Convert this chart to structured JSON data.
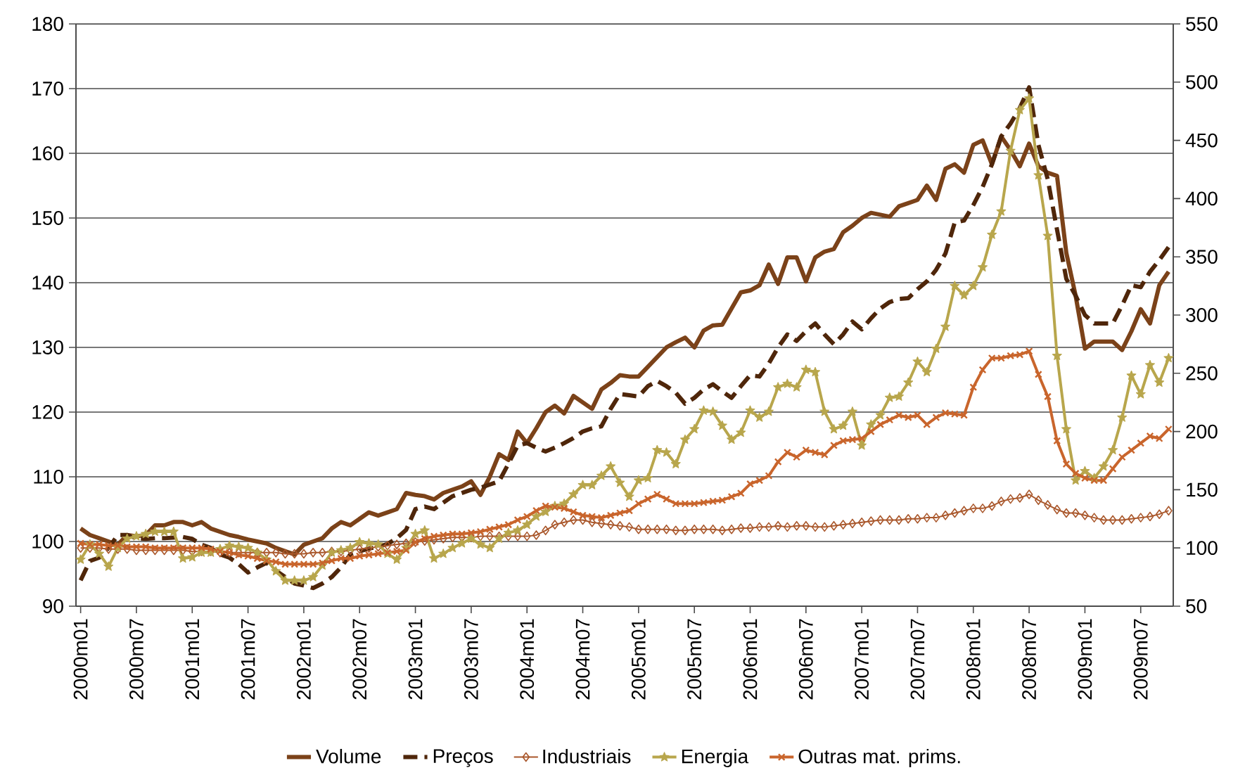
{
  "chart_data": {
    "type": "line",
    "categories": [
      "2000m01",
      null,
      null,
      null,
      null,
      null,
      "2000m07",
      null,
      null,
      null,
      null,
      null,
      "2001m01",
      null,
      null,
      null,
      null,
      null,
      "2001m07",
      null,
      null,
      null,
      null,
      null,
      "2002m01",
      null,
      null,
      null,
      null,
      null,
      "2002m07",
      null,
      null,
      null,
      null,
      null,
      "2003m01",
      null,
      null,
      null,
      null,
      null,
      "2003m07",
      null,
      null,
      null,
      null,
      null,
      "2004m01",
      null,
      null,
      null,
      null,
      null,
      "2004m07",
      null,
      null,
      null,
      null,
      null,
      "2005m01",
      null,
      null,
      null,
      null,
      null,
      "2005m07",
      null,
      null,
      null,
      null,
      null,
      "2006m01",
      null,
      null,
      null,
      null,
      null,
      "2006m07",
      null,
      null,
      null,
      null,
      null,
      "2007m01",
      null,
      null,
      null,
      null,
      null,
      "2007m07",
      null,
      null,
      null,
      null,
      null,
      "2008m01",
      null,
      null,
      null,
      null,
      null,
      "2008m07",
      null,
      null,
      null,
      null,
      null,
      "2009m01",
      null,
      null,
      null,
      null,
      null,
      "2009m07",
      null,
      null,
      null
    ],
    "ylim": [
      90,
      180
    ],
    "yticks": [
      90,
      100,
      110,
      120,
      130,
      140,
      150,
      160,
      170,
      180
    ],
    "y2lim": [
      50,
      550
    ],
    "y2ticks": [
      50,
      100,
      150,
      200,
      250,
      300,
      350,
      400,
      450,
      500,
      550
    ],
    "grid": "y",
    "legend": "bottom",
    "series": [
      {
        "name": "Volume",
        "color": "#7b4219",
        "marker": "none",
        "line_style": "solid",
        "values": [
          102,
          101,
          100.5,
          100,
          99.5,
          101,
          100.8,
          101,
          102.5,
          102.5,
          103,
          103,
          102.5,
          103,
          102,
          101.5,
          101,
          100.7,
          100.3,
          100,
          99.7,
          99,
          98.5,
          98,
          99.5,
          100,
          100.5,
          102,
          103,
          102.5,
          103.5,
          104.5,
          104,
          104.5,
          105,
          107.5,
          107.2,
          107,
          106.5,
          107.5,
          108,
          108.5,
          109.3,
          107.2,
          110,
          113.5,
          112.6,
          117,
          115.2,
          117.5,
          120,
          121,
          119.8,
          122.5,
          121.5,
          120.5,
          123.5,
          124.5,
          125.7,
          125.5,
          125.5,
          127,
          128.5,
          130,
          130.8,
          131.5,
          130,
          132.6,
          133.4,
          133.5,
          136,
          138.5,
          138.8,
          139.6,
          142.8,
          139.8,
          143.9,
          143.9,
          140.2,
          143.9,
          144.8,
          145.2,
          147.8,
          148.8,
          150,
          150.8,
          150.5,
          150.2,
          151.8,
          152.3,
          152.8,
          155,
          152.8,
          157.6,
          158.3,
          157,
          161.3,
          162,
          158.3,
          162.6,
          160.5,
          158,
          161.5,
          158,
          157,
          156.5,
          144.6,
          138,
          129.8,
          130.9,
          130.9,
          130.9,
          129.6,
          132.5,
          135.9,
          133.7,
          139.6,
          141.7
        ]
      },
      {
        "name": "Preços",
        "color": "#4f260a",
        "marker": "none",
        "line_style": "dashed",
        "values": [
          94,
          97,
          97.5,
          99,
          101,
          101,
          100.5,
          100.4,
          100.5,
          100.5,
          100.6,
          100.7,
          100.4,
          99.5,
          99,
          98,
          97.5,
          96.5,
          95.2,
          96,
          96.7,
          95.5,
          94.5,
          93.5,
          93.2,
          92.8,
          93.5,
          94.5,
          96,
          98,
          98.5,
          98.9,
          99.2,
          99.6,
          100.5,
          101.8,
          105,
          105.4,
          105,
          106,
          107,
          107.5,
          108,
          108.3,
          108.8,
          109.3,
          112,
          114.8,
          115.2,
          114.5,
          113.9,
          114.5,
          115.2,
          116,
          117,
          117.5,
          117.8,
          120.5,
          122.8,
          122.6,
          122.4,
          124,
          124.8,
          124,
          123,
          121.3,
          122.2,
          123.5,
          124.3,
          123.2,
          122.2,
          124,
          125.7,
          125.5,
          127.5,
          130,
          132,
          131,
          132.5,
          133.7,
          132,
          130.5,
          132,
          134,
          132.8,
          134.5,
          136,
          137,
          137.5,
          137.6,
          139,
          140.2,
          142,
          144.5,
          149.3,
          149.6,
          152,
          154.8,
          158.3,
          162.6,
          164.6,
          167,
          170.2,
          161.3,
          156,
          148.2,
          140.6,
          138,
          135,
          133.7,
          133.7,
          133.7,
          136.5,
          139.6,
          139.3,
          141.7,
          143.5,
          145.5
        ]
      },
      {
        "name": "Industriais",
        "color": "#a9572b",
        "marker": "diamond",
        "line_style": "solid",
        "axis": "y2",
        "values": [
          100,
          100,
          100,
          99,
          99,
          99,
          98,
          98,
          98,
          98,
          98,
          98,
          97,
          97,
          97,
          96,
          96,
          96,
          96,
          96,
          96,
          96,
          95,
          95,
          95,
          96,
          96,
          97,
          97,
          98,
          99,
          100,
          101,
          102,
          103,
          104,
          105,
          106,
          107,
          108,
          109,
          109,
          109,
          110,
          110,
          110,
          110,
          110,
          110,
          111,
          115,
          120,
          122,
          124,
          124,
          122,
          121,
          120,
          119,
          118,
          116,
          116,
          116,
          116,
          115,
          115,
          116,
          116,
          116,
          115,
          116,
          117,
          117,
          118,
          118,
          119,
          118,
          119,
          119,
          118,
          118,
          119,
          120,
          121,
          122,
          123,
          124,
          124,
          124,
          125,
          125,
          126,
          126,
          128,
          130,
          132,
          134,
          134,
          136,
          140,
          142,
          143,
          146,
          141,
          137,
          133,
          130,
          130,
          128,
          126,
          124,
          124,
          124,
          125,
          126,
          127,
          129,
          132
        ]
      },
      {
        "name": "Energia",
        "color": "#b8a64c",
        "marker": "star",
        "line_style": "solid",
        "axis": "y2",
        "values": [
          90,
          103,
          95,
          84,
          100,
          108,
          110,
          112,
          114,
          114,
          114,
          91,
          92,
          96,
          96,
          99,
          102,
          101,
          100,
          96,
          90,
          80,
          72,
          72,
          72,
          75,
          85,
          96,
          98,
          100,
          105,
          104,
          103,
          95,
          90,
          100,
          112,
          115,
          91,
          95,
          100,
          104,
          108,
          103,
          100,
          108,
          113,
          115,
          120,
          127,
          131,
          136,
          138,
          146,
          154,
          154,
          162,
          170,
          156,
          144,
          158,
          160,
          184,
          182,
          172,
          193,
          202,
          218,
          217,
          205,
          193,
          199,
          218,
          212,
          217,
          238,
          241,
          238,
          253,
          251,
          217,
          202,
          205,
          217,
          188,
          206,
          214,
          229,
          230,
          242,
          260,
          251,
          271,
          290,
          325,
          317,
          325,
          341,
          369,
          389,
          441,
          476,
          486,
          420,
          368,
          265,
          202,
          158,
          166,
          160,
          170,
          184,
          212,
          248,
          232,
          257,
          242,
          263
        ]
      },
      {
        "name": "Outras mat. prims.",
        "color": "#c9652c",
        "marker": "cross",
        "line_style": "solid",
        "axis": "y2",
        "values": [
          104,
          103,
          103,
          102,
          102,
          101,
          101,
          101,
          100,
          100,
          100,
          100,
          100,
          100,
          99,
          97,
          96,
          94,
          93,
          91,
          89,
          88,
          86,
          86,
          86,
          86,
          87,
          89,
          91,
          91,
          93,
          94,
          95,
          96,
          97,
          98,
          105,
          108,
          110,
          111,
          112,
          112,
          113,
          114,
          116,
          118,
          120,
          124,
          127,
          132,
          136,
          135,
          134,
          131,
          128,
          127,
          126,
          128,
          130,
          132,
          138,
          142,
          146,
          142,
          138,
          138,
          138,
          139,
          140,
          141,
          144,
          147,
          155,
          158,
          162,
          174,
          182,
          178,
          184,
          182,
          180,
          188,
          192,
          193,
          194,
          200,
          206,
          210,
          214,
          212,
          214,
          206,
          212,
          216,
          215,
          214,
          238,
          253,
          263,
          263,
          265,
          266,
          269,
          249,
          230,
          192,
          172,
          164,
          160,
          158,
          158,
          168,
          178,
          184,
          190,
          196,
          194,
          202
        ]
      }
    ]
  }
}
